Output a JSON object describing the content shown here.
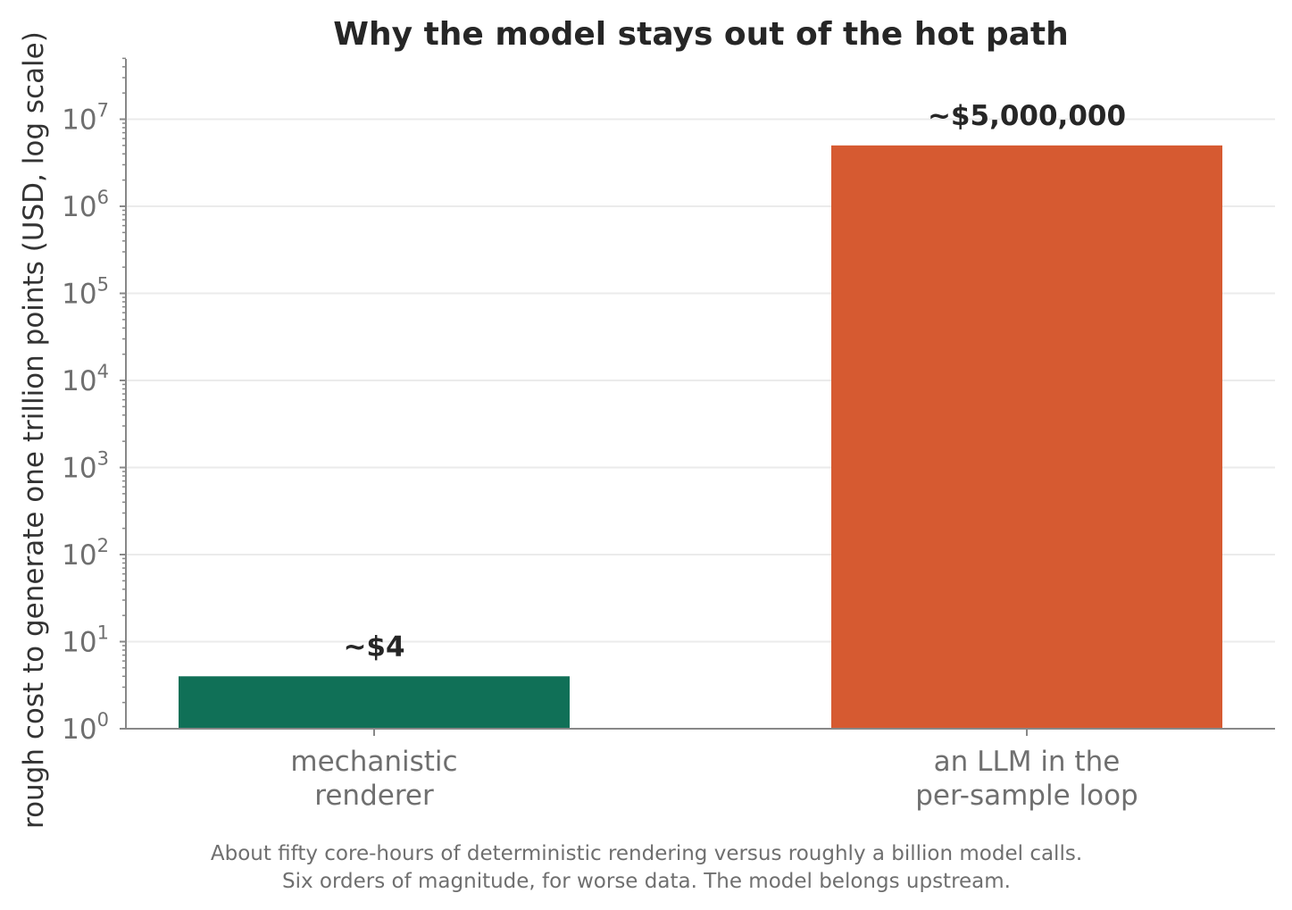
{
  "chart_data": {
    "type": "bar",
    "title": "Why the model stays out of the hot path",
    "ylabel": "rough cost to generate one trillion points  (USD, log scale)",
    "xlabel": "",
    "yscale": "log",
    "ylim": [
      1,
      50000000
    ],
    "yticks": [
      {
        "value": 1,
        "base": "10",
        "exp": "0"
      },
      {
        "value": 10,
        "base": "10",
        "exp": "1"
      },
      {
        "value": 100,
        "base": "10",
        "exp": "2"
      },
      {
        "value": 1000,
        "base": "10",
        "exp": "3"
      },
      {
        "value": 10000,
        "base": "10",
        "exp": "4"
      },
      {
        "value": 100000,
        "base": "10",
        "exp": "5"
      },
      {
        "value": 1000000,
        "base": "10",
        "exp": "6"
      },
      {
        "value": 10000000,
        "base": "10",
        "exp": "7"
      }
    ],
    "grid": true,
    "categories": [
      [
        "mechanistic",
        "renderer"
      ],
      [
        "an LLM in the",
        "per-sample loop"
      ]
    ],
    "values": [
      4,
      5000000
    ],
    "data_labels": [
      "~$4",
      "~$5,000,000"
    ],
    "colors": [
      "#107057",
      "#d65a31"
    ],
    "caption": [
      "About fifty core-hours of deterministic rendering versus roughly a billion model calls.",
      "Six orders of magnitude, for worse data. The model belongs upstream."
    ]
  }
}
